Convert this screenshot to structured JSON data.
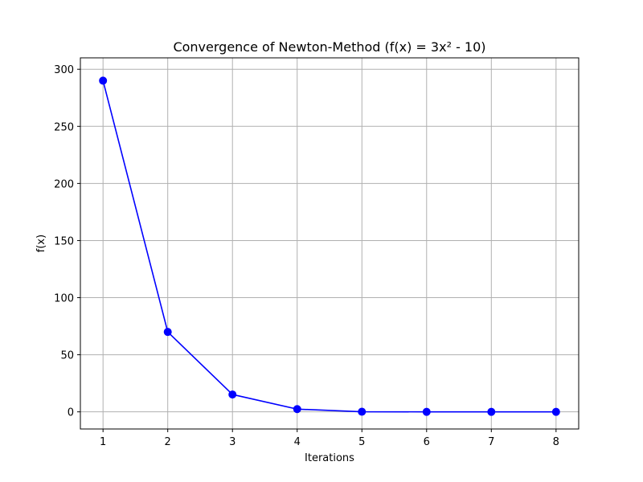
{
  "chart_data": {
    "type": "line",
    "title": "Convergence of Newton-Method (f(x) = 3x² - 10)",
    "xlabel": "Iterations",
    "ylabel": "f(x)",
    "x": [
      1,
      2,
      3,
      4,
      5,
      6,
      7,
      8
    ],
    "series": [
      {
        "values": [
          290,
          70,
          15.2,
          2.4,
          0.1,
          0.0,
          0.0,
          0.0
        ],
        "color": "#0000ff",
        "marker": "circle"
      }
    ],
    "xticks": [
      "1",
      "2",
      "3",
      "4",
      "5",
      "6",
      "7",
      "8"
    ],
    "yticks": [
      "0",
      "50",
      "100",
      "150",
      "200",
      "250",
      "300"
    ],
    "xlim": [
      0.65,
      8.35
    ],
    "ylim": [
      -15,
      310
    ],
    "grid": true,
    "grid_color": "#b0b0b0"
  }
}
